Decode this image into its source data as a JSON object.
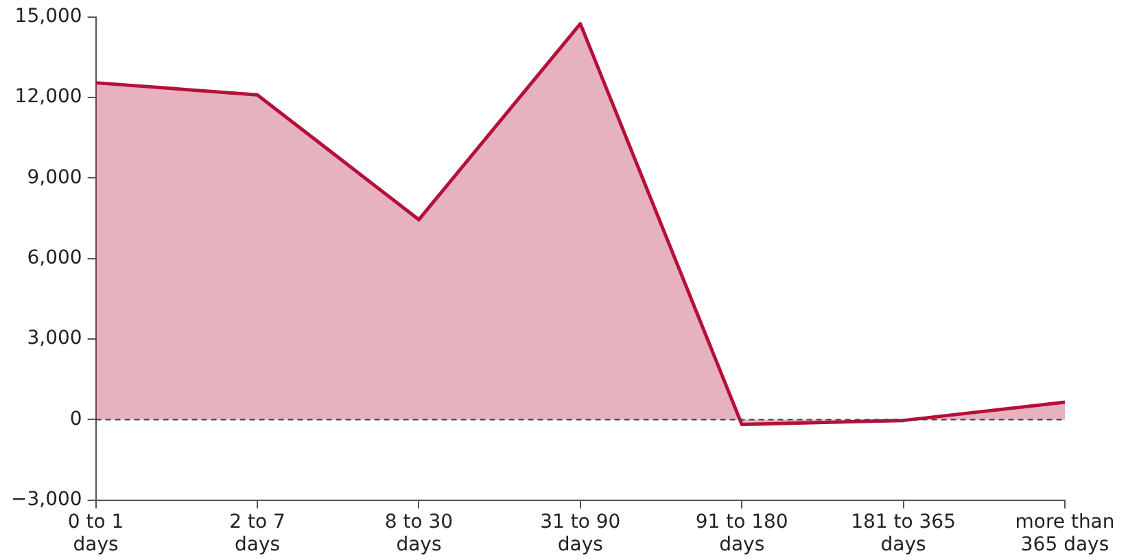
{
  "chart_data": {
    "type": "area",
    "categories": [
      "0 to 1 days",
      "2 to 7 days",
      "8 to 30 days",
      "31 to 90 days",
      "91 to 180 days",
      "181 to 365 days",
      "more than 365 days"
    ],
    "series": [
      {
        "color": "#b5103a",
        "values": [
          12550,
          12100,
          7450,
          14750,
          -180,
          -30,
          650
        ]
      }
    ],
    "ylim": [
      -3000,
      15000
    ],
    "yticks": [
      {
        "value": -3000,
        "label": "−3,000"
      },
      {
        "value": 0,
        "label": "0"
      },
      {
        "value": 3000,
        "label": "3,000"
      },
      {
        "value": 6000,
        "label": "6,000"
      },
      {
        "value": 9000,
        "label": "9,000"
      },
      {
        "value": 12000,
        "label": "12,000"
      },
      {
        "value": 15000,
        "label": "15,000"
      }
    ],
    "ref_lines": [
      {
        "axis": "y",
        "value": 0,
        "color": "#404040",
        "line_style": "dashed"
      }
    ],
    "grid": false,
    "legend": false,
    "marker": "none",
    "line_style": "solid"
  }
}
